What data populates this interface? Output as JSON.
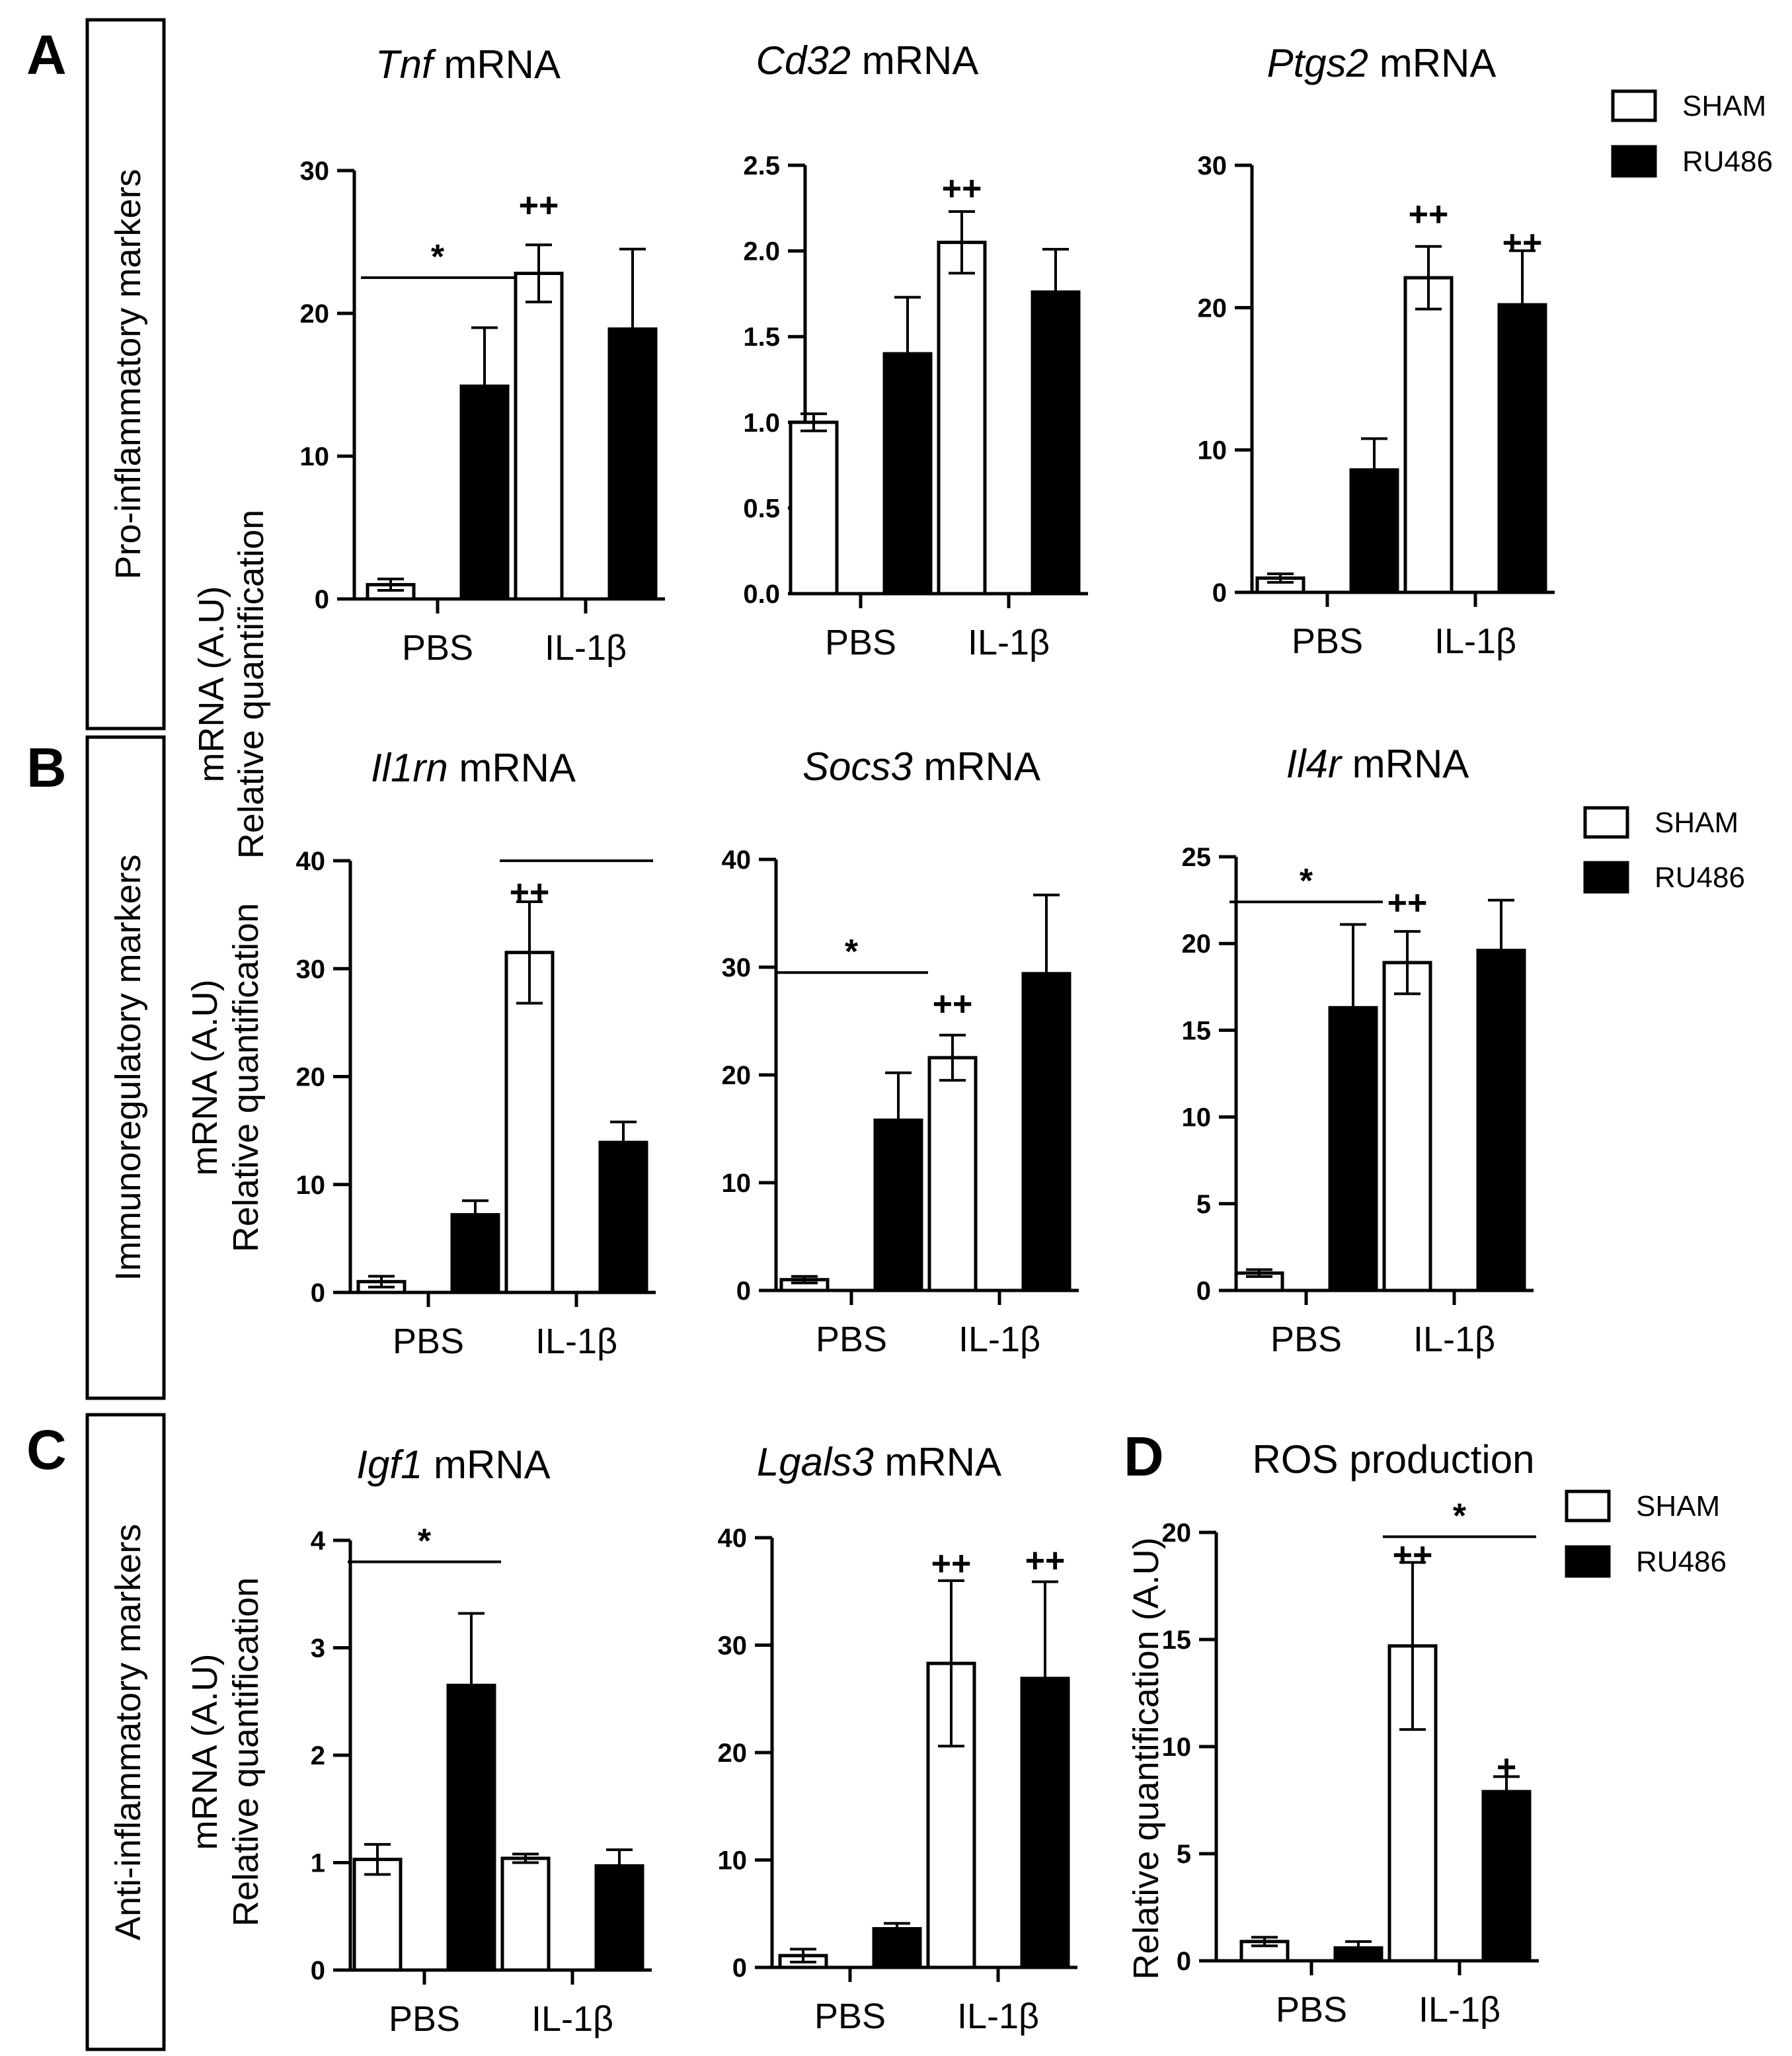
{
  "sections": [
    {
      "letter": "A",
      "label": "Pro-inflammatory markers"
    },
    {
      "letter": "B",
      "label": "Immunoregulatory markers"
    },
    {
      "letter": "C",
      "label": "Anti-inflammatory markers"
    }
  ],
  "panel_d_letter": "D",
  "legend": {
    "sham": "SHAM",
    "ru486": "RU486"
  },
  "colors": {
    "sham": "#ffffff",
    "ru486": "#000000",
    "stroke": "#000000"
  },
  "chart_data": [
    {
      "id": "tnf",
      "type": "bar",
      "title_gene": "Tnf",
      "title_suffix": " mRNA",
      "ylabel": [
        "mRNA (A.U)",
        "Relative quantification"
      ],
      "categories": [
        "PBS",
        "IL-1β"
      ],
      "ylim": [
        0,
        30
      ],
      "yticks": [
        "0",
        "10",
        "20",
        "30"
      ],
      "series": [
        {
          "name": "SHAM",
          "values": [
            1.0,
            22.8
          ],
          "errors": [
            0.4,
            2.0
          ]
        },
        {
          "name": "RU486",
          "values": [
            14.9,
            18.9
          ],
          "errors": [
            4.1,
            5.6
          ]
        }
      ],
      "annotations": [
        {
          "text": "*",
          "type": "bracket",
          "from": [
            0,
            0
          ],
          "to": [
            0,
            1
          ],
          "y": 22.5
        },
        {
          "text": "++",
          "type": "mark",
          "category": 1,
          "series": 0,
          "y": 27.5
        }
      ]
    },
    {
      "id": "cd32",
      "type": "bar",
      "title_gene": "Cd32",
      "title_suffix": " mRNA",
      "categories": [
        "PBS",
        "IL-1β"
      ],
      "ylim": [
        0,
        2.5
      ],
      "yticks": [
        "0.0",
        "0.5",
        "1.0",
        "1.5",
        "2.0",
        "2.5"
      ],
      "series": [
        {
          "name": "SHAM",
          "values": [
            1.0,
            2.05
          ],
          "errors": [
            0.05,
            0.18
          ]
        },
        {
          "name": "RU486",
          "values": [
            1.4,
            1.76
          ],
          "errors": [
            0.33,
            0.25
          ]
        }
      ],
      "annotations": [
        {
          "text": "++",
          "type": "mark",
          "category": 1,
          "series": 0,
          "y": 2.36
        }
      ]
    },
    {
      "id": "ptgs2",
      "type": "bar",
      "title_gene": "Ptgs2",
      "title_suffix": " mRNA",
      "categories": [
        "PBS",
        "IL-1β"
      ],
      "ylim": [
        0,
        30
      ],
      "yticks": [
        "0",
        "10",
        "20",
        "30"
      ],
      "series": [
        {
          "name": "SHAM",
          "values": [
            1.0,
            22.1
          ],
          "errors": [
            0.3,
            2.2
          ]
        },
        {
          "name": "RU486",
          "values": [
            8.6,
            20.2
          ],
          "errors": [
            2.2,
            3.8
          ]
        }
      ],
      "annotations": [
        {
          "text": "++",
          "type": "mark",
          "category": 1,
          "series": 0,
          "y": 26.5
        },
        {
          "text": "++",
          "type": "mark",
          "category": 1,
          "series": 1,
          "y": 24.5
        }
      ]
    },
    {
      "id": "il1rn",
      "type": "bar",
      "title_gene": "Il1rn",
      "title_suffix": " mRNA",
      "ylabel": [
        "mRNA (A.U)",
        "Relative quantification"
      ],
      "categories": [
        "PBS",
        "IL-1β"
      ],
      "ylim": [
        0,
        40
      ],
      "yticks": [
        "0",
        "10",
        "20",
        "30",
        "40"
      ],
      "series": [
        {
          "name": "SHAM",
          "values": [
            1.0,
            31.5
          ],
          "errors": [
            0.5,
            4.7
          ]
        },
        {
          "name": "RU486",
          "values": [
            7.2,
            13.9
          ],
          "errors": [
            1.3,
            1.9
          ]
        }
      ],
      "annotations": [
        {
          "text": "",
          "type": "bracket",
          "from": [
            1,
            0
          ],
          "to": [
            1,
            1
          ],
          "y": 40
        },
        {
          "text": "++",
          "type": "mark",
          "category": 1,
          "series": 0,
          "y": 37
        }
      ]
    },
    {
      "id": "socs3",
      "type": "bar",
      "title_gene": "Socs3",
      "title_suffix": " mRNA",
      "categories": [
        "PBS",
        "IL-1β"
      ],
      "ylim": [
        0,
        40
      ],
      "yticks": [
        "0",
        "10",
        "20",
        "30",
        "40"
      ],
      "series": [
        {
          "name": "SHAM",
          "values": [
            1.0,
            21.6
          ],
          "errors": [
            0.3,
            2.1
          ]
        },
        {
          "name": "RU486",
          "values": [
            15.8,
            29.4
          ],
          "errors": [
            4.4,
            7.3
          ]
        }
      ],
      "annotations": [
        {
          "text": "*",
          "type": "bracket",
          "from": [
            0,
            0
          ],
          "to": [
            0,
            1
          ],
          "y": 29.5
        },
        {
          "text": "++",
          "type": "mark",
          "category": 1,
          "series": 0,
          "y": 26.5
        }
      ]
    },
    {
      "id": "il4r",
      "type": "bar",
      "title_gene": "Il4r",
      "title_suffix": " mRNA",
      "categories": [
        "PBS",
        "IL-1β"
      ],
      "ylim": [
        0,
        25
      ],
      "yticks": [
        "0",
        "5",
        "10",
        "15",
        "20",
        "25"
      ],
      "series": [
        {
          "name": "SHAM",
          "values": [
            1.0,
            18.9
          ],
          "errors": [
            0.2,
            1.8
          ]
        },
        {
          "name": "RU486",
          "values": [
            16.3,
            19.6
          ],
          "errors": [
            4.8,
            2.9
          ]
        }
      ],
      "annotations": [
        {
          "text": "*",
          "type": "bracket",
          "from": [
            0,
            0
          ],
          "to": [
            0,
            1
          ],
          "y": 22.4
        },
        {
          "text": "++",
          "type": "mark",
          "category": 1,
          "series": 0,
          "y": 22.3
        }
      ]
    },
    {
      "id": "igf1",
      "type": "bar",
      "title_gene": "Igf1",
      "title_suffix": " mRNA",
      "ylabel": [
        "mRNA (A.U)",
        "Relative quantification"
      ],
      "categories": [
        "PBS",
        "IL-1β"
      ],
      "ylim": [
        0,
        4
      ],
      "yticks": [
        "0",
        "1",
        "2",
        "3",
        "4"
      ],
      "series": [
        {
          "name": "SHAM",
          "values": [
            1.03,
            1.04
          ],
          "errors": [
            0.14,
            0.04
          ]
        },
        {
          "name": "RU486",
          "values": [
            2.65,
            0.97
          ],
          "errors": [
            0.67,
            0.15
          ]
        }
      ],
      "annotations": [
        {
          "text": "*",
          "type": "bracket",
          "from": [
            0,
            0
          ],
          "to": [
            0,
            1
          ],
          "y": 3.8
        }
      ]
    },
    {
      "id": "lgals3",
      "type": "bar",
      "title_gene": "Lgals3",
      "title_suffix": " mRNA",
      "categories": [
        "PBS",
        "IL-1β"
      ],
      "ylim": [
        0,
        40
      ],
      "yticks": [
        "0",
        "10",
        "20",
        "30",
        "40"
      ],
      "series": [
        {
          "name": "SHAM",
          "values": [
            1.1,
            28.3
          ],
          "errors": [
            0.6,
            7.7
          ]
        },
        {
          "name": "RU486",
          "values": [
            3.6,
            26.9
          ],
          "errors": [
            0.5,
            9.0
          ]
        }
      ],
      "annotations": [
        {
          "text": "++",
          "type": "mark",
          "category": 1,
          "series": 0,
          "y": 37.5
        },
        {
          "text": "++",
          "type": "mark",
          "category": 1,
          "series": 1,
          "y": 37.8
        }
      ]
    },
    {
      "id": "ros",
      "type": "bar",
      "title_gene": "",
      "title_suffix": "ROS production",
      "ylabel": [
        "Relative quantification (A.U)"
      ],
      "categories": [
        "PBS",
        "IL-1β"
      ],
      "ylim": [
        0,
        20
      ],
      "yticks": [
        "0",
        "5",
        "10",
        "15",
        "20"
      ],
      "series": [
        {
          "name": "SHAM",
          "values": [
            0.9,
            14.7
          ],
          "errors": [
            0.2,
            3.9
          ]
        },
        {
          "name": "RU486",
          "values": [
            0.6,
            7.9
          ],
          "errors": [
            0.3,
            0.7
          ]
        }
      ],
      "annotations": [
        {
          "text": "*",
          "type": "bracket",
          "from": [
            1,
            0
          ],
          "to": [
            1,
            1
          ],
          "y": 19.8
        },
        {
          "text": "++",
          "type": "mark",
          "category": 1,
          "series": 0,
          "y": 18.9
        },
        {
          "text": "+",
          "type": "mark",
          "category": 1,
          "series": 1,
          "y": 9.0
        }
      ]
    }
  ]
}
